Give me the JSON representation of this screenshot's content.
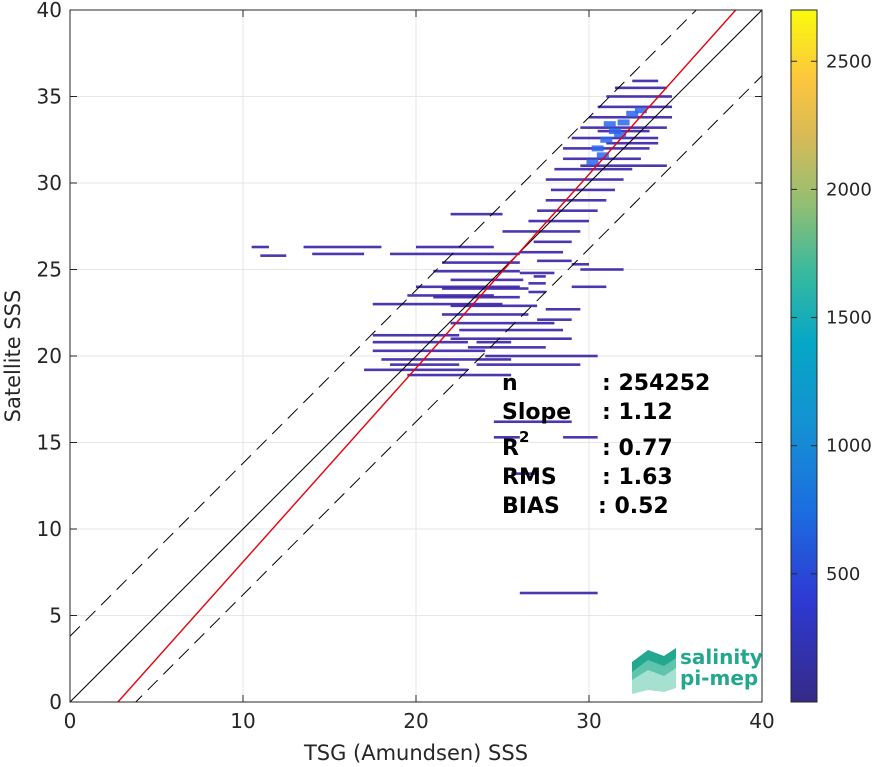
{
  "chart_data": {
    "type": "heatmap",
    "title": "",
    "xlabel": "TSG (Amundsen) SSS",
    "ylabel": "Satellite SSS",
    "xlim": [
      0,
      40
    ],
    "ylim": [
      0,
      40
    ],
    "xticks": [
      0,
      10,
      20,
      30,
      40
    ],
    "yticks": [
      0,
      5,
      10,
      15,
      20,
      25,
      30,
      35,
      40
    ],
    "grid": true,
    "colorbar": {
      "min": 0,
      "max": 2700,
      "ticks": [
        500,
        1000,
        1500,
        2000,
        2500
      ],
      "colormap": "parula"
    },
    "reference_lines": [
      {
        "name": "1:1",
        "slope": 1,
        "intercept": 0,
        "color": "#000000",
        "style": "solid"
      },
      {
        "name": "+/-2 std",
        "slope": 1,
        "intercept": 3.8,
        "color": "#000000",
        "style": "dashed"
      },
      {
        "name": "+/-2 std",
        "slope": 1,
        "intercept": -3.8,
        "color": "#000000",
        "style": "dashed"
      },
      {
        "name": "fit",
        "slope": 1.12,
        "intercept": -3.1,
        "color": "#e8000b",
        "style": "solid"
      }
    ],
    "density_segments": [
      [
        10.5,
        26.3,
        11.5
      ],
      [
        13.5,
        26.3,
        18.0
      ],
      [
        20.0,
        26.3,
        24.5
      ],
      [
        11.0,
        25.8,
        12.5
      ],
      [
        14.0,
        25.9,
        17.0
      ],
      [
        18.5,
        25.9,
        22.0
      ],
      [
        22.0,
        25.9,
        26.0
      ],
      [
        21.5,
        25.4,
        26.0
      ],
      [
        21.0,
        24.9,
        26.0
      ],
      [
        22.0,
        24.4,
        26.2
      ],
      [
        21.5,
        23.9,
        26.5
      ],
      [
        21.0,
        23.4,
        26.0
      ],
      [
        22.0,
        22.9,
        27.0
      ],
      [
        21.5,
        22.4,
        26.5
      ],
      [
        22.0,
        21.9,
        28.0
      ],
      [
        22.5,
        21.5,
        28.5
      ],
      [
        17.5,
        21.2,
        22.5
      ],
      [
        22.0,
        21.0,
        29.0
      ],
      [
        17.5,
        20.8,
        23.0
      ],
      [
        23.0,
        20.5,
        27.5
      ],
      [
        17.5,
        20.3,
        24.0
      ],
      [
        24.0,
        20.0,
        30.5
      ],
      [
        18.0,
        19.8,
        25.5
      ],
      [
        18.5,
        19.5,
        22.5
      ],
      [
        23.5,
        19.5,
        29.5
      ],
      [
        17.0,
        19.2,
        23.0
      ],
      [
        19.5,
        18.9,
        25.5
      ],
      [
        17.5,
        23.0,
        25.0
      ],
      [
        19.5,
        23.5,
        24.5
      ],
      [
        20.0,
        24.0,
        26.0
      ],
      [
        23.5,
        20.8,
        25.5
      ],
      [
        27.5,
        22.7,
        29.5
      ],
      [
        27.0,
        22.1,
        29.0
      ],
      [
        26.5,
        24.2,
        27.5
      ],
      [
        26.0,
        24.8,
        28.0
      ],
      [
        27.0,
        25.5,
        29.0
      ],
      [
        26.0,
        26.0,
        28.5
      ],
      [
        26.8,
        26.6,
        29.0
      ],
      [
        25.0,
        27.2,
        29.5
      ],
      [
        26.5,
        27.8,
        30.0
      ],
      [
        22.0,
        28.2,
        25.0
      ],
      [
        27.0,
        28.4,
        30.5
      ],
      [
        27.5,
        29.0,
        31.0
      ],
      [
        27.8,
        29.6,
        31.5
      ],
      [
        27.5,
        30.2,
        32.0
      ],
      [
        28.0,
        30.8,
        32.5
      ],
      [
        28.5,
        31.4,
        33.0
      ],
      [
        28.5,
        32.0,
        33.5
      ],
      [
        29.0,
        32.6,
        34.0
      ],
      [
        29.5,
        33.2,
        34.5
      ],
      [
        30.0,
        33.8,
        34.8
      ],
      [
        30.5,
        34.4,
        34.8
      ],
      [
        31.0,
        35.0,
        34.8
      ],
      [
        31.5,
        35.5,
        34.5
      ],
      [
        32.5,
        35.9,
        34.0
      ],
      [
        30.5,
        33.0,
        33.5
      ],
      [
        31.0,
        32.3,
        34.0
      ],
      [
        29.5,
        31.0,
        34.5
      ],
      [
        26.5,
        23.7,
        27.5
      ],
      [
        26.8,
        24.6,
        27.5
      ],
      [
        29.0,
        25.3,
        30.0
      ],
      [
        26.0,
        6.3,
        30.5
      ],
      [
        24.5,
        15.3,
        26.0
      ],
      [
        28.5,
        15.3,
        30.5
      ],
      [
        24.5,
        16.2,
        29.0
      ],
      [
        25.5,
        13.2,
        27.0
      ],
      [
        29.0,
        24.0,
        31.0
      ],
      [
        29.5,
        25.0,
        32.0
      ]
    ],
    "hot_points": [
      [
        30.5,
        32.0
      ],
      [
        31.0,
        32.5
      ],
      [
        31.5,
        33.0
      ],
      [
        32.0,
        33.5
      ],
      [
        30.8,
        31.6
      ],
      [
        32.5,
        34.0
      ],
      [
        31.2,
        33.4
      ],
      [
        30.2,
        31.2
      ],
      [
        33.0,
        34.2
      ],
      [
        31.8,
        32.8
      ]
    ],
    "stats": {
      "n_label": "n",
      "n_value": ": 254252",
      "slope_label": "Slope",
      "slope_value": ": 1.12",
      "r2_label": "R",
      "r2_sup": "2",
      "r2_value": ": 0.77",
      "rms_label": "RMS",
      "rms_value": ": 1.63",
      "bias_label": "BIAS",
      "bias_value": ": 0.52"
    }
  },
  "logo": {
    "line1": "salinity",
    "line2": "pi-mep"
  },
  "colors": {
    "fit_line": "#e8000b",
    "density_low": "#3e26a8",
    "density_mid": "#2b66ef",
    "grid": "#e6e6e6"
  }
}
